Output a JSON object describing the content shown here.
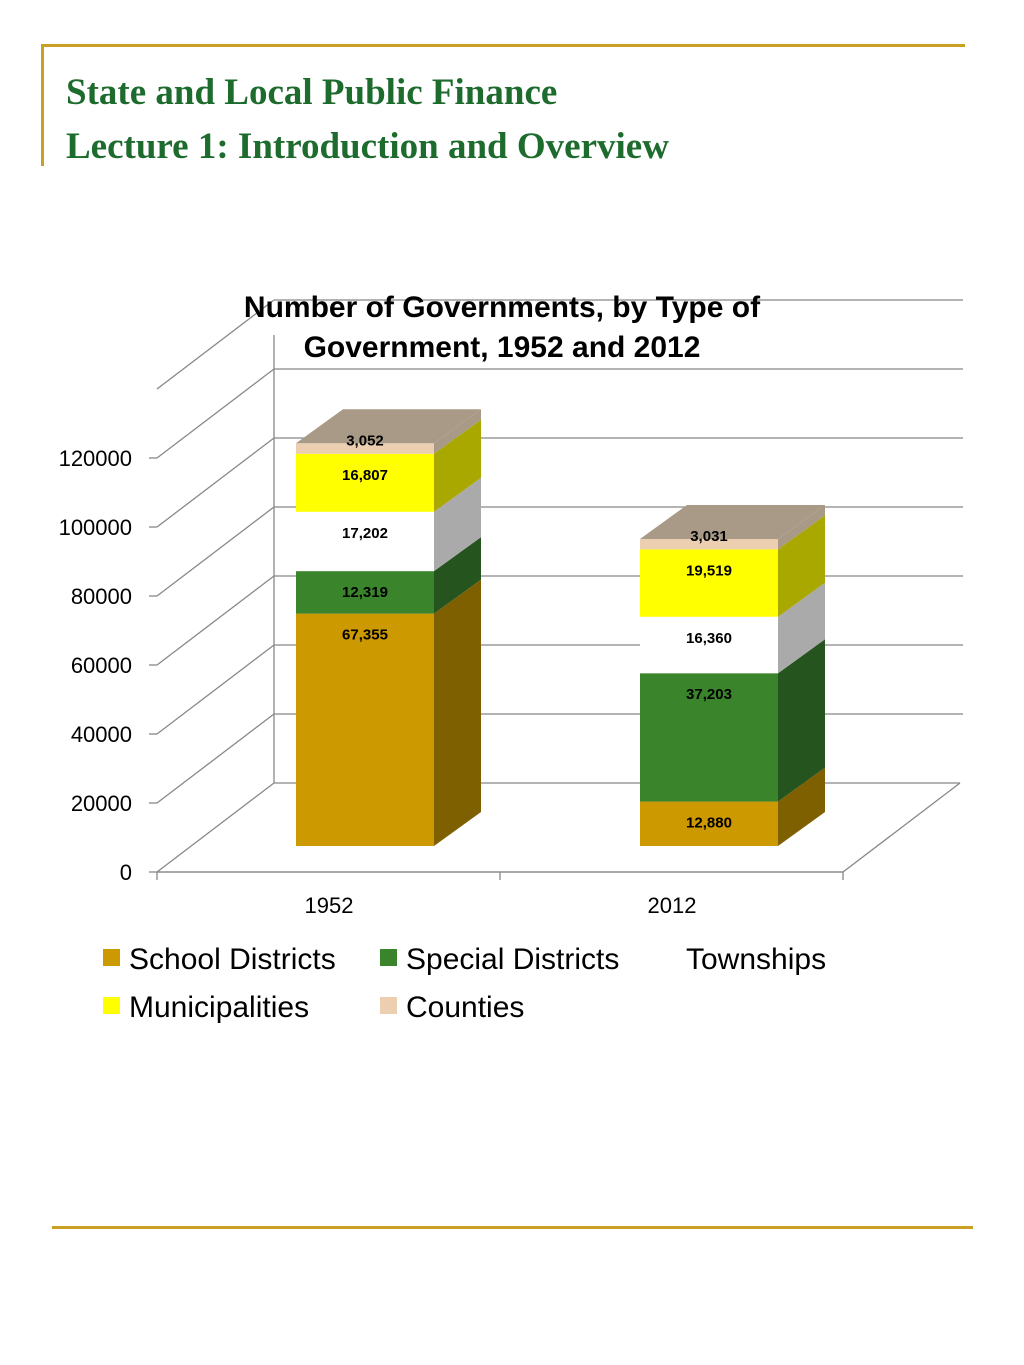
{
  "slide": {
    "title_line1": "State and Local Public Finance",
    "title_line2": "Lecture 1:  Introduction and Overview"
  },
  "chart_data": {
    "type": "bar",
    "stacked": true,
    "three_d": true,
    "title_line1": "Number of Governments, by Type of",
    "title_line2": "Government, 1952 and 2012",
    "categories": [
      "1952",
      "2012"
    ],
    "ylim": [
      0,
      120000
    ],
    "y_ticks": [
      "0",
      "20000",
      "40000",
      "60000",
      "80000",
      "100000",
      "120000"
    ],
    "grid": true,
    "legend_position": "bottom",
    "series": [
      {
        "name": "School Districts",
        "values": [
          67355,
          12880
        ],
        "labels": [
          "67,355",
          "12,880"
        ],
        "color": "#CC9900",
        "side_color": "#7F6000",
        "legend_swatch": true
      },
      {
        "name": "Special Districts",
        "values": [
          12319,
          37203
        ],
        "labels": [
          "12,319",
          "37,203"
        ],
        "color": "#3A842C",
        "side_color": "#26541F",
        "legend_swatch": true
      },
      {
        "name": "Townships",
        "values": [
          17202,
          16360
        ],
        "labels": [
          "17,202",
          "16,360"
        ],
        "color": "#FFFFFF",
        "side_color": "#AAAAAA",
        "legend_swatch": false
      },
      {
        "name": "Municipalities",
        "values": [
          16807,
          19519
        ],
        "labels": [
          "16,807",
          "19,519"
        ],
        "color": "#FFFF00",
        "side_color": "#A8A800",
        "legend_swatch": true
      },
      {
        "name": "Counties",
        "values": [
          3052,
          3031
        ],
        "labels": [
          "3,052",
          "3,031"
        ],
        "color": "#EBCFB0",
        "side_color": "#A89A86",
        "legend_swatch": true
      }
    ],
    "top_color": "#A89A86"
  }
}
